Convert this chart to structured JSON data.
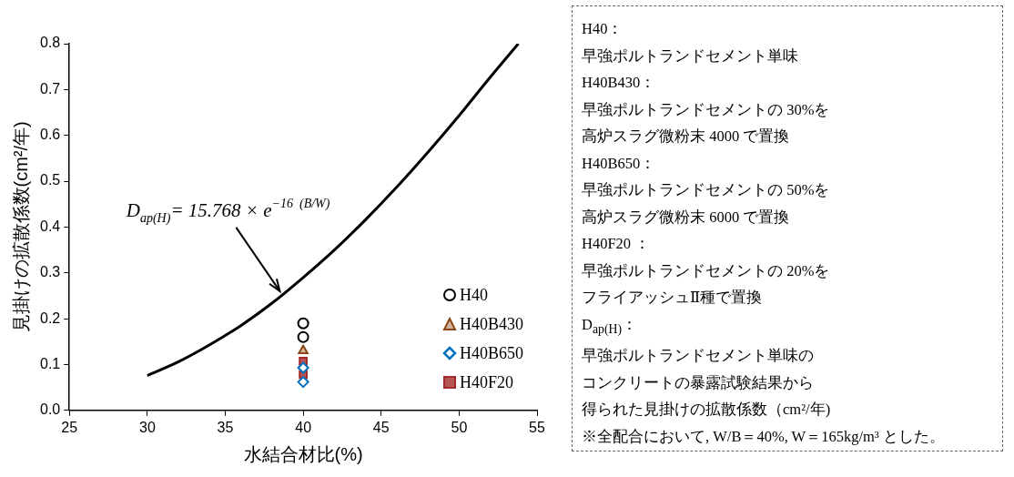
{
  "chart_data": {
    "type": "scatter",
    "xlabel": "水結合材比(%)",
    "ylabel": "見掛けの拡散係数(cm²/年)",
    "xlim": [
      25,
      55
    ],
    "xticks": [
      25,
      30,
      35,
      40,
      45,
      50,
      55
    ],
    "ylim": [
      0,
      0.8
    ],
    "yticks": [
      {
        "value": 0,
        "label": "0.0"
      },
      0.1,
      0.2,
      0.3,
      0.4,
      0.5,
      0.6,
      0.7,
      0.8
    ],
    "grid": false,
    "legend": "right",
    "series": [
      {
        "type": "line",
        "color": "#000000",
        "marker": "none",
        "x": [
          30,
          32,
          34,
          36,
          38,
          40,
          42,
          44,
          46,
          48,
          50,
          52,
          53.8
        ],
        "values": [
          0.076,
          0.106,
          0.143,
          0.185,
          0.234,
          0.29,
          0.35,
          0.416,
          0.487,
          0.563,
          0.643,
          0.727,
          0.8
        ]
      },
      {
        "name": "H40",
        "color": "#000000",
        "marker": "circle",
        "x": [
          40,
          40
        ],
        "values": [
          0.19,
          0.16
        ]
      },
      {
        "name": "H40B430",
        "color": "#8b4513",
        "marker": "triangle",
        "x": [
          40
        ],
        "values": [
          0.13
        ]
      },
      {
        "name": "H40B650",
        "color": "#0070c0",
        "marker": "diamond",
        "x": [
          40,
          40
        ],
        "values": [
          0.093,
          0.062
        ]
      },
      {
        "name": "H40F20",
        "color": "#a52a2a",
        "marker": "square",
        "x": [
          40,
          40
        ],
        "values": [
          0.107,
          0.078
        ]
      }
    ],
    "annotations": [
      {
        "text": "D$_{ap(H)}$= 15.768 × e$^{−16  (B/W)}$",
        "x": 38.5,
        "y": 0.26
      },
      "H40：",
      "早強ポルトランドセメント単味",
      "H40B430：",
      "早強ポルトランドセメントの 30%を",
      "高炉スラグ微粉末 4000 で置換",
      "H40B650：",
      "早強ポルトランドセメントの 50%を",
      "高炉スラグ微粉末 6000 で置換",
      "H40F20 ：",
      "早強ポルトランドセメントの 20%を",
      "フライアッシュⅡ種で置換",
      "D$_{ap(H)}$：",
      "早強ポルトランドセメント単味の",
      "コンクリートの暴露試験結果から",
      "得られた見掛けの拡散係数（cm²/年)",
      "※全配合において, W/B＝40%, W＝165kg/m³ とした。"
    ]
  }
}
